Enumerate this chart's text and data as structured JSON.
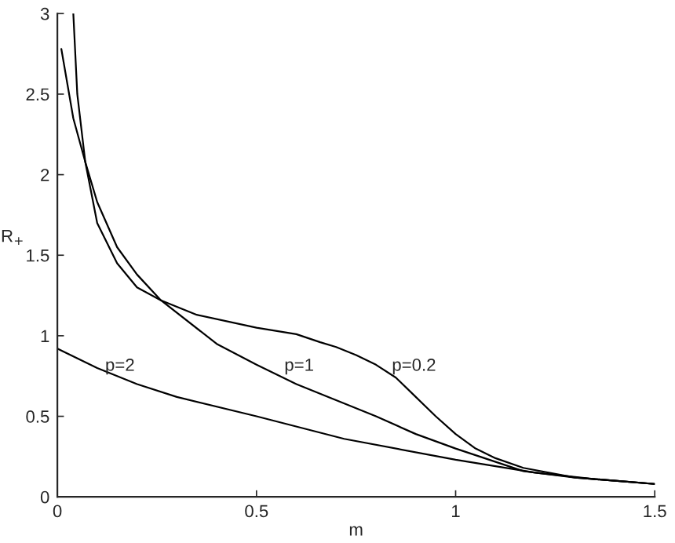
{
  "chart_data": {
    "type": "line",
    "xlabel": "m",
    "ylabel": "R$_{+}$",
    "xlim": [
      0,
      1.5
    ],
    "ylim": [
      0,
      3
    ],
    "xticks": [
      0,
      0.5,
      1,
      1.5
    ],
    "yticks": [
      0,
      0.5,
      1,
      1.5,
      2,
      2.5,
      3
    ],
    "grid": false,
    "legend": false,
    "marker": "none",
    "line_style": "solid",
    "series": [
      {
        "color": "#000000",
        "x": [
          0.04,
          0.05,
          0.07,
          0.1,
          0.15,
          0.2,
          0.26,
          0.35,
          0.5,
          0.6,
          0.66,
          0.7,
          0.75,
          0.8,
          0.85,
          0.9,
          0.95,
          1.0,
          1.05,
          1.1,
          1.17,
          1.3,
          1.4,
          1.5
        ],
        "values": [
          3,
          2.5,
          2.08,
          1.7,
          1.45,
          1.3,
          1.22,
          1.13,
          1.05,
          1.01,
          0.96,
          0.93,
          0.88,
          0.82,
          0.74,
          0.62,
          0.5,
          0.39,
          0.3,
          0.24,
          0.18,
          0.12,
          0.1,
          0.08
        ]
      },
      {
        "color": "#000000",
        "x": [
          0.01,
          0.04,
          0.07,
          0.1,
          0.15,
          0.2,
          0.26,
          0.4,
          0.5,
          0.6,
          0.7,
          0.8,
          0.9,
          1.0,
          1.17,
          1.3,
          1.4,
          1.5
        ],
        "values": [
          2.78,
          2.35,
          2.08,
          1.83,
          1.55,
          1.38,
          1.22,
          0.95,
          0.82,
          0.7,
          0.6,
          0.5,
          0.39,
          0.3,
          0.16,
          0.12,
          0.1,
          0.08
        ]
      },
      {
        "color": "#000000",
        "x": [
          0,
          0.1,
          0.2,
          0.3,
          0.5,
          0.72,
          1.0,
          1.2,
          1.35,
          1.5
        ],
        "values": [
          0.92,
          0.8,
          0.7,
          0.62,
          0.5,
          0.36,
          0.23,
          0.15,
          0.11,
          0.08
        ]
      }
    ],
    "annotations": [
      {
        "text": "p=0.2",
        "x": 0.84,
        "y": 0.76
      },
      {
        "text": "p=1",
        "x": 0.57,
        "y": 0.76
      },
      {
        "text": "p=2",
        "x": 0.12,
        "y": 0.76
      }
    ]
  }
}
